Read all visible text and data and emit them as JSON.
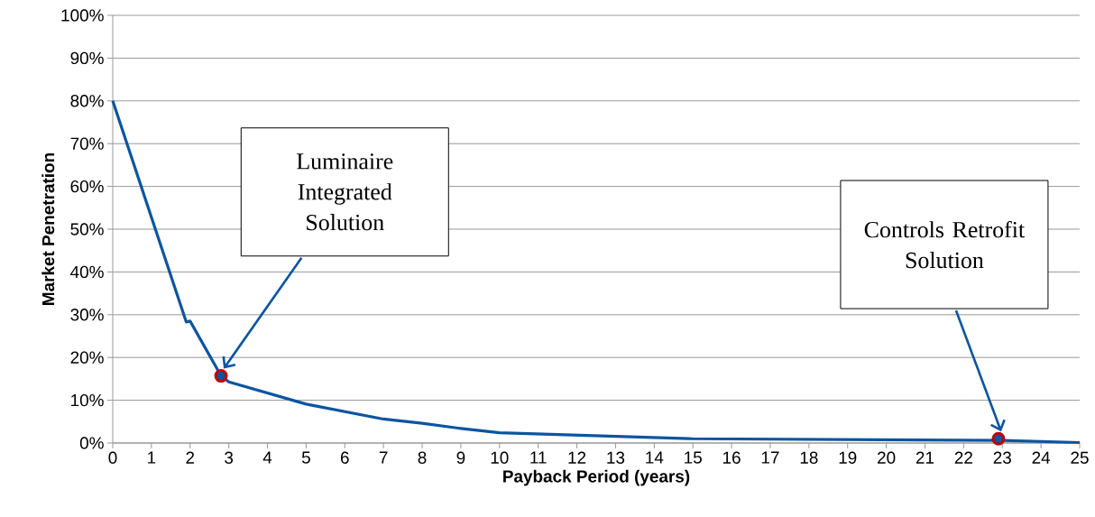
{
  "chart_data": {
    "type": "line",
    "xlabel": "Payback Period (years)",
    "ylabel": "Market Penetration",
    "xlim": [
      0,
      25
    ],
    "xticks": [
      0,
      1,
      2,
      3,
      4,
      5,
      6,
      7,
      8,
      9,
      10,
      11,
      12,
      13,
      14,
      15,
      16,
      17,
      18,
      19,
      20,
      21,
      22,
      23,
      24,
      25
    ],
    "ylim": [
      0,
      100
    ],
    "yticks": [
      {
        "value": 0,
        "label": "0%"
      },
      {
        "value": 10,
        "label": "10%"
      },
      {
        "value": 20,
        "label": "20%"
      },
      {
        "value": 30,
        "label": "30%"
      },
      {
        "value": 40,
        "label": "40%"
      },
      {
        "value": 50,
        "label": "50%"
      },
      {
        "value": 60,
        "label": "60%"
      },
      {
        "value": 70,
        "label": "70%"
      },
      {
        "value": 80,
        "label": "80%"
      },
      {
        "value": 90,
        "label": "90%"
      },
      {
        "value": 100,
        "label": "100%"
      }
    ],
    "grid": "y",
    "series": [
      {
        "color": "#0b55a0",
        "marker": "none",
        "x": [
          0,
          1.9,
          2,
          2.8,
          3,
          5,
          7,
          8,
          9,
          10,
          15,
          23,
          25
        ],
        "values": [
          80,
          28.3,
          28.5,
          15.7,
          14.3,
          9.1,
          5.6,
          4.6,
          3.4,
          2.4,
          1.0,
          0.6,
          0.1
        ]
      },
      {
        "type": "scatter",
        "color": "#c00000",
        "marker": "circle",
        "x": [
          2.8,
          22.9
        ],
        "values": [
          15.7,
          1.0
        ]
      }
    ],
    "annotations": [
      "Luminaire Integrated Solution",
      "Controls Retrofit Solution"
    ]
  }
}
